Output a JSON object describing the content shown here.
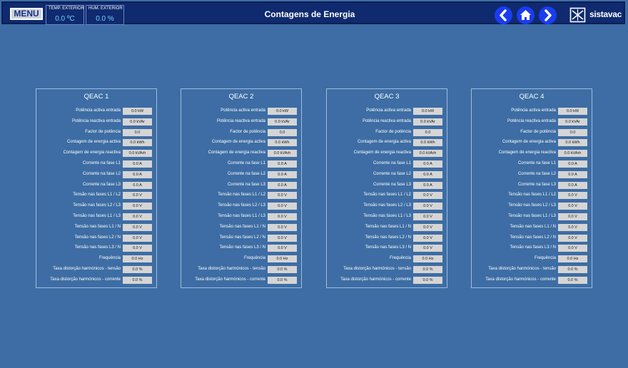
{
  "header": {
    "menu_label": "MENU",
    "temp": {
      "label": "TEMP. EXTERIOR",
      "value": "0.0 ºC"
    },
    "hum": {
      "label": "HUM. EXTERIOR",
      "value": "0.0 %"
    },
    "title": "Contagens de Energia",
    "logo_text": "sistavac",
    "nav_icons": [
      "chevron-left-icon",
      "home-icon",
      "chevron-right-icon"
    ]
  },
  "colors": {
    "background": "#3d6da4",
    "header": "#0f2a6e",
    "nav_button": "#1a3cf0",
    "value_box": "#d5d5d5",
    "readout_value": "#6fd3ff"
  },
  "panels": [
    {
      "title": "QEAC 1",
      "rows": [
        {
          "label": "Potência activa entrada",
          "value": "0.0 kW"
        },
        {
          "label": "Potência reactiva entrada",
          "value": "0.0 kVAr"
        },
        {
          "label": "Factor de potência",
          "value": "0.0"
        },
        {
          "label": "Contagem de energia activa",
          "value": "0.0 kWh"
        },
        {
          "label": "Contagem de energia reactiva",
          "value": "0.0 kVArh"
        },
        {
          "label": "Corrente na fase L1",
          "value": "0.0 A"
        },
        {
          "label": "Corrente na fase L2",
          "value": "0.0 A"
        },
        {
          "label": "Corrente na fase L3",
          "value": "0.0 A"
        },
        {
          "label": "Tensão nas fases L1 / L2",
          "value": "0.0 V"
        },
        {
          "label": "Tensão nas fases L2 / L3",
          "value": "0.0 V"
        },
        {
          "label": "Tensão nas fases L1 / L3",
          "value": "0.0 V"
        },
        {
          "label": "Tensão nas fases L1 / N",
          "value": "0.0 V"
        },
        {
          "label": "Tensão nas fases L2 / N",
          "value": "0.0 V"
        },
        {
          "label": "Tensão nas fases L3 / N",
          "value": "0.0 V"
        },
        {
          "label": "Frequência",
          "value": "0.0 Hz"
        },
        {
          "label": "Taxa distorção harmónicos - tensão",
          "value": "0.0 %"
        },
        {
          "label": "Taxa distorção harmónicos - corrente",
          "value": "0.0 %"
        }
      ]
    },
    {
      "title": "QEAC 2",
      "rows": [
        {
          "label": "Potência activa entrada",
          "value": "0.0 kW"
        },
        {
          "label": "Potência reactiva entrada",
          "value": "0.0 kVAr"
        },
        {
          "label": "Factor de potência",
          "value": "0.0"
        },
        {
          "label": "Contagem de energia activa",
          "value": "0.0 kWh"
        },
        {
          "label": "Contagem de energia reactiva",
          "value": "0.0 kVArh"
        },
        {
          "label": "Corrente na fase L1",
          "value": "0.0 A"
        },
        {
          "label": "Corrente na fase L2",
          "value": "0.0 A"
        },
        {
          "label": "Corrente na fase L3",
          "value": "0.0 A"
        },
        {
          "label": "Tensão nas fases L1 / L2",
          "value": "0.0 V"
        },
        {
          "label": "Tensão nas fases L2 / L3",
          "value": "0.0 V"
        },
        {
          "label": "Tensão nas fases L1 / L3",
          "value": "0.0 V"
        },
        {
          "label": "Tensão nas fases L1 / N",
          "value": "0.0 V"
        },
        {
          "label": "Tensão nas fases L2 / N",
          "value": "0.0 V"
        },
        {
          "label": "Tensão nas fases L3 / N",
          "value": "0.0 V"
        },
        {
          "label": "Frequência",
          "value": "0.0 Hz"
        },
        {
          "label": "Taxa distorção harmónicos - tensão",
          "value": "0.0 %"
        },
        {
          "label": "Taxa distorção harmónicos - corrente",
          "value": "0.0 %"
        }
      ]
    },
    {
      "title": "QEAC 3",
      "rows": [
        {
          "label": "Potência activa entrada",
          "value": "0.0 kW"
        },
        {
          "label": "Potência reactiva entrada",
          "value": "0.0 kVAr"
        },
        {
          "label": "Factor de potência",
          "value": "0.0"
        },
        {
          "label": "Contagem de energia activa",
          "value": "0.0 kWh"
        },
        {
          "label": "Contagem de energia reactiva",
          "value": "0.0 kVArh"
        },
        {
          "label": "Corrente na fase L1",
          "value": "0.0 A"
        },
        {
          "label": "Corrente na fase L2",
          "value": "0.0 A"
        },
        {
          "label": "Corrente na fase L3",
          "value": "0.0 A"
        },
        {
          "label": "Tensão nas fases L1 / L2",
          "value": "0.0 V"
        },
        {
          "label": "Tensão nas fases L2 / L3",
          "value": "0.0 V"
        },
        {
          "label": "Tensão nas fases L1 / L3",
          "value": "0.0 V"
        },
        {
          "label": "Tensão nas fases L1 / N",
          "value": "0.0 V"
        },
        {
          "label": "Tensão nas fases L2 / N",
          "value": "0.0 V"
        },
        {
          "label": "Tensão nas fases L3 / N",
          "value": "0.0 V"
        },
        {
          "label": "Frequência",
          "value": "0.0 Hz"
        },
        {
          "label": "Taxa distorção harmónicos - tensão",
          "value": "0.0 %"
        },
        {
          "label": "Taxa distorção harmónicos - corrente",
          "value": "0.0 %"
        }
      ]
    },
    {
      "title": "QEAC 4",
      "rows": [
        {
          "label": "Potência activa entrada",
          "value": "0.0 kW"
        },
        {
          "label": "Potência reactiva entrada",
          "value": "0.0 kVAr"
        },
        {
          "label": "Factor de potência",
          "value": "0.0"
        },
        {
          "label": "Contagem de energia activa",
          "value": "0.0 kWh"
        },
        {
          "label": "Contagem de energia reactiva",
          "value": "0.0 kVArh"
        },
        {
          "label": "Corrente na fase L1",
          "value": "0.0 A"
        },
        {
          "label": "Corrente na fase L2",
          "value": "0.0 A"
        },
        {
          "label": "Corrente na fase L3",
          "value": "0.0 A"
        },
        {
          "label": "Tensão nas fases L1 / L2",
          "value": "0.0 V"
        },
        {
          "label": "Tensão nas fases L2 / L3",
          "value": "0.0 V"
        },
        {
          "label": "Tensão nas fases L1 / L3",
          "value": "0.0 V"
        },
        {
          "label": "Tensão nas fases L1 / N",
          "value": "0.0 V"
        },
        {
          "label": "Tensão nas fases L2 / N",
          "value": "0.0 V"
        },
        {
          "label": "Tensão nas fases L3 / N",
          "value": "0.0 V"
        },
        {
          "label": "Frequência",
          "value": "0.0 Hz"
        },
        {
          "label": "Taxa distorção harmónicos - tensão",
          "value": "0.0 %"
        },
        {
          "label": "Taxa distorção harmónicos - corrente",
          "value": "0.0 %"
        }
      ]
    }
  ]
}
